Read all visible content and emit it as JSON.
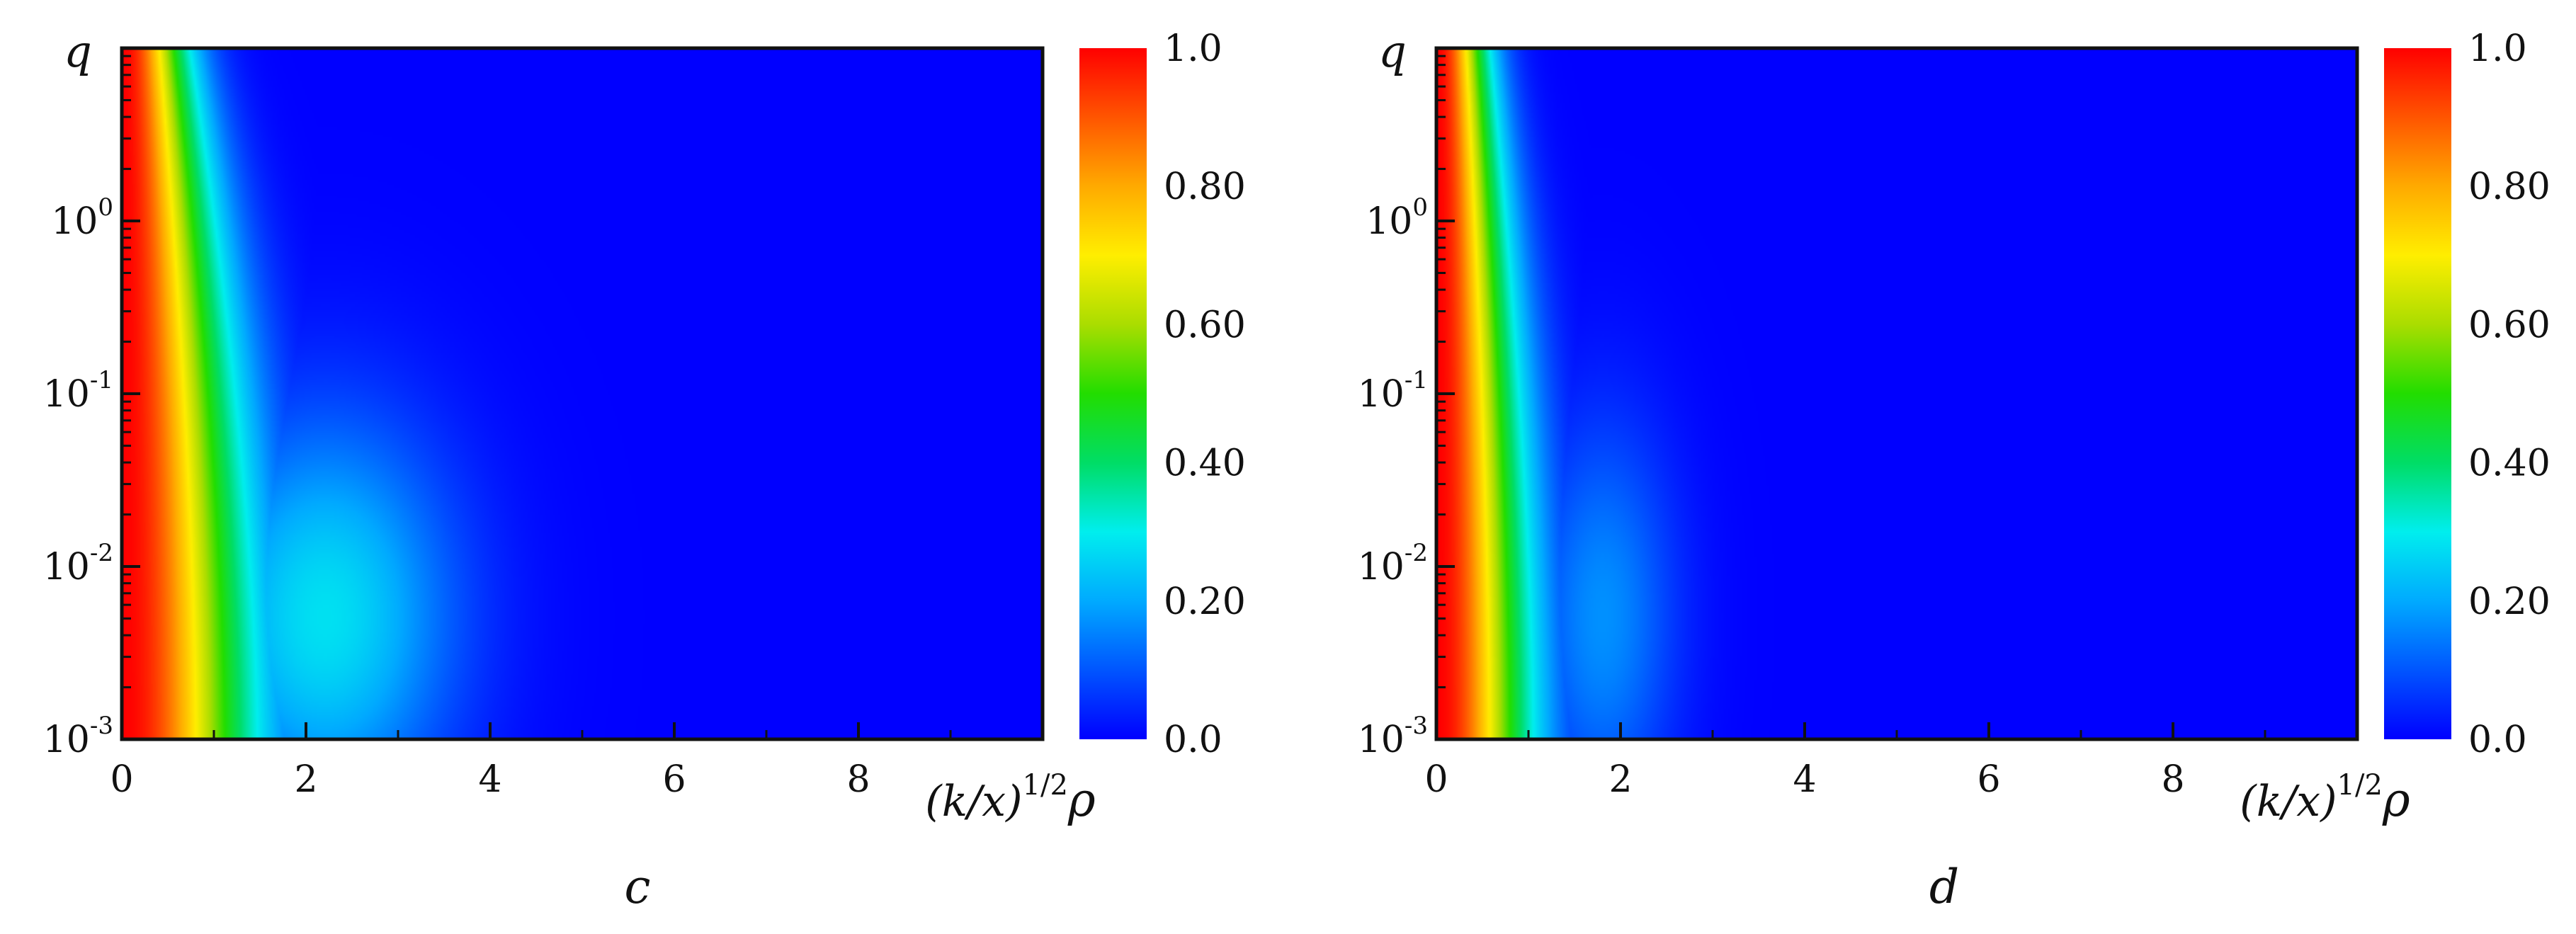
{
  "colors": {
    "colormap": [
      "#0000ff",
      "#0055ff",
      "#00aaff",
      "#00eeee",
      "#00dd66",
      "#22dd00",
      "#aadd00",
      "#ffee00",
      "#ffaa00",
      "#ff5500",
      "#ff0000"
    ],
    "axis": "#111111"
  },
  "chart_data": [
    {
      "type": "heatmap",
      "panel_label": "c",
      "ylabel": "q",
      "xlabel": "(k/x)^{1/2}ρ",
      "xlabel_parts": {
        "main": "(k/x)",
        "sup": "1/2",
        "tail": "ρ"
      },
      "xlim": [
        0,
        10
      ],
      "x_ticks": [
        "0",
        "2",
        "4",
        "6",
        "8"
      ],
      "x_tick_values": [
        0,
        2,
        4,
        6,
        8
      ],
      "yscale": "log",
      "ylim": [
        0.001,
        10
      ],
      "y_ticks": [
        {
          "base": "10",
          "exp": "-3",
          "value": 0.001
        },
        {
          "base": "10",
          "exp": "-2",
          "value": 0.01
        },
        {
          "base": "10",
          "exp": "-1",
          "value": 0.1
        },
        {
          "base": "10",
          "exp": "0",
          "value": 1
        }
      ],
      "colorbar": {
        "range": [
          0,
          1
        ],
        "tick_labels": [
          "0.0",
          "0.20",
          "0.40",
          "0.60",
          "0.80",
          "1.0"
        ],
        "tick_values": [
          0,
          0.2,
          0.4,
          0.6,
          0.8,
          1.0
        ]
      },
      "field": {
        "core_width_q_low": 1.4,
        "core_width_q_high": 0.7,
        "side_lobe": {
          "center": 2.2,
          "width": 1.6,
          "max_intensity": 0.28,
          "q_peak": 0.005
        }
      },
      "grid": false
    },
    {
      "type": "heatmap",
      "panel_label": "d",
      "ylabel": "q",
      "xlabel": "(k/x)^{1/2}ρ",
      "xlabel_parts": {
        "main": "(k/x)",
        "sup": "1/2",
        "tail": "ρ"
      },
      "xlim": [
        0,
        10
      ],
      "x_ticks": [
        "0",
        "2",
        "4",
        "6",
        "8"
      ],
      "x_tick_values": [
        0,
        2,
        4,
        6,
        8
      ],
      "yscale": "log",
      "ylim": [
        0.001,
        10
      ],
      "y_ticks": [
        {
          "base": "10",
          "exp": "-3",
          "value": 0.001
        },
        {
          "base": "10",
          "exp": "-2",
          "value": 0.01
        },
        {
          "base": "10",
          "exp": "-1",
          "value": 0.1
        },
        {
          "base": "10",
          "exp": "0",
          "value": 1
        }
      ],
      "colorbar": {
        "range": [
          0,
          1
        ],
        "tick_labels": [
          "0.0",
          "0.20",
          "0.40",
          "0.60",
          "0.80",
          "1.0"
        ],
        "tick_values": [
          0,
          0.2,
          0.4,
          0.6,
          0.8,
          1.0
        ]
      },
      "field": {
        "core_width_q_low": 1.0,
        "core_width_q_high": 0.55,
        "side_lobe": {
          "center": 1.8,
          "width": 0.9,
          "max_intensity": 0.17,
          "q_peak": 0.005
        }
      },
      "grid": false
    }
  ]
}
